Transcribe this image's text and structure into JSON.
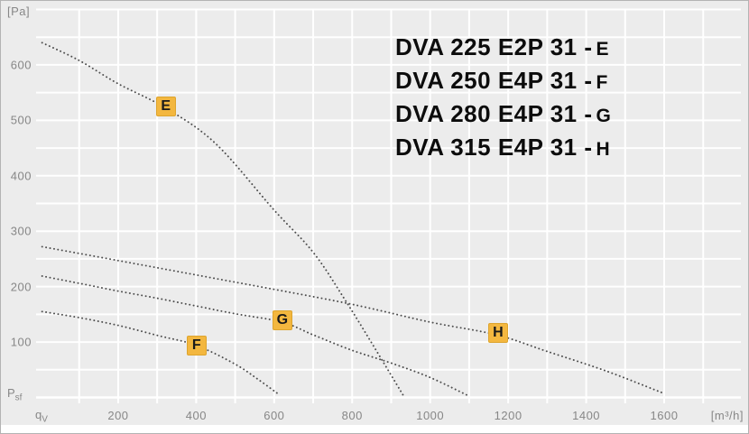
{
  "colors": {
    "background": "#ececec",
    "grid": "#ffffff",
    "curve_dots": "#4d4d4d",
    "marker_fill": "#f3b73f",
    "marker_border": "#dda42e",
    "marker_text": "#1a1a1a",
    "axis_text": "#878787",
    "legend_text": "#0c0c0c"
  },
  "axis": {
    "y_unit_label": "[Pa]",
    "x_unit_label": "[m³/h]",
    "y_symbol": "P",
    "y_symbol_sub": "sf",
    "x_symbol": "q",
    "x_symbol_sub": "V"
  },
  "legend": {
    "items": [
      {
        "model": "DVA 225 E2P 31 -",
        "curve": "E"
      },
      {
        "model": "DVA 250 E4P 31 -",
        "curve": "F"
      },
      {
        "model": "DVA 280 E4P 31 -",
        "curve": "G"
      },
      {
        "model": "DVA 315 E4P 31 -",
        "curve": "H"
      }
    ]
  },
  "chart_data": {
    "type": "line",
    "line_style": "dotted",
    "title": "",
    "xlabel": "qV [m³/h]",
    "ylabel": "Psf [Pa]",
    "x_range": [
      0,
      1700
    ],
    "y_range": [
      0,
      700
    ],
    "x_grid_step": 100,
    "y_grid_step": 50,
    "grid": true,
    "legend_position": "top-right",
    "x_ticks": [
      200,
      400,
      600,
      800,
      1000,
      1200,
      1400,
      1600
    ],
    "y_ticks": [
      100,
      200,
      300,
      400,
      500,
      600
    ],
    "series": [
      {
        "name": "E",
        "model": "DVA 225 E2P 31",
        "marker_at": [
          322,
          525
        ],
        "points": [
          [
            5,
            640
          ],
          [
            100,
            608
          ],
          [
            200,
            566
          ],
          [
            322,
            522
          ],
          [
            450,
            458
          ],
          [
            600,
            338
          ],
          [
            700,
            262
          ],
          [
            780,
            178
          ],
          [
            852,
            96
          ],
          [
            930,
            5
          ]
        ]
      },
      {
        "name": "F",
        "model": "DVA 250 E4P 31",
        "marker_at": [
          401,
          93
        ],
        "points": [
          [
            5,
            155
          ],
          [
            100,
            144
          ],
          [
            200,
            130
          ],
          [
            300,
            112
          ],
          [
            400,
            94
          ],
          [
            500,
            60
          ],
          [
            560,
            32
          ],
          [
            615,
            4
          ]
        ]
      },
      {
        "name": "G",
        "model": "DVA 280 E4P 31",
        "marker_at": [
          621,
          139
        ],
        "points": [
          [
            5,
            219
          ],
          [
            100,
            206
          ],
          [
            200,
            192
          ],
          [
            300,
            179
          ],
          [
            400,
            165
          ],
          [
            500,
            151
          ],
          [
            620,
            136
          ],
          [
            700,
            113
          ],
          [
            800,
            85
          ],
          [
            900,
            62
          ],
          [
            1000,
            36
          ],
          [
            1095,
            4
          ]
        ]
      },
      {
        "name": "H",
        "model": "DVA 315 E4P 31",
        "marker_at": [
          1174,
          116
        ],
        "points": [
          [
            5,
            272
          ],
          [
            200,
            247
          ],
          [
            400,
            221
          ],
          [
            600,
            195
          ],
          [
            800,
            168
          ],
          [
            1000,
            136
          ],
          [
            1170,
            113
          ],
          [
            1300,
            83
          ],
          [
            1450,
            48
          ],
          [
            1597,
            8
          ]
        ]
      }
    ]
  }
}
